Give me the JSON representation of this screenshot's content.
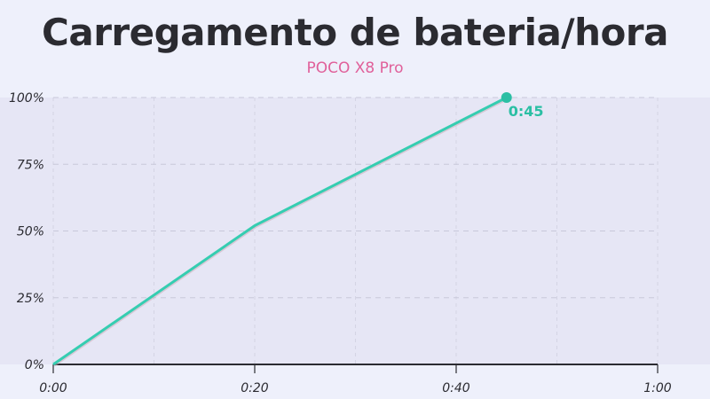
{
  "header": {
    "title": "Carregamento de bateria/hora",
    "subtitle": "POCO X8 Pro"
  },
  "colors": {
    "background": "#eef0fb",
    "plot_band": "#e6e6f5",
    "line": "#35cdb1",
    "line_shadow": "#c9a9b5",
    "end_marker": "#2bbfa4",
    "subtitle": "#e0609a",
    "title": "#2b2b31"
  },
  "end_label": "0:45",
  "chart_data": {
    "type": "line",
    "title": "Carregamento de bateria/hora",
    "subtitle": "POCO X8 Pro",
    "xlabel": "",
    "ylabel": "",
    "x_unit": "minutes",
    "xlim": [
      0,
      60
    ],
    "ylim": [
      0,
      100
    ],
    "x_ticks": [
      "0:00",
      "0:20",
      "0:40",
      "1:00"
    ],
    "y_ticks": [
      "0%",
      "25%",
      "50%",
      "75%",
      "100%"
    ],
    "grid": true,
    "legend": null,
    "series": [
      {
        "name": "POCO X8 Pro",
        "x": [
          0,
          20,
          45
        ],
        "x_labels": [
          "0:00",
          "0:20",
          "0:45"
        ],
        "values": [
          0,
          52,
          100
        ]
      }
    ],
    "annotations": [
      {
        "x": 45,
        "y": 100,
        "text": "0:45"
      }
    ]
  }
}
